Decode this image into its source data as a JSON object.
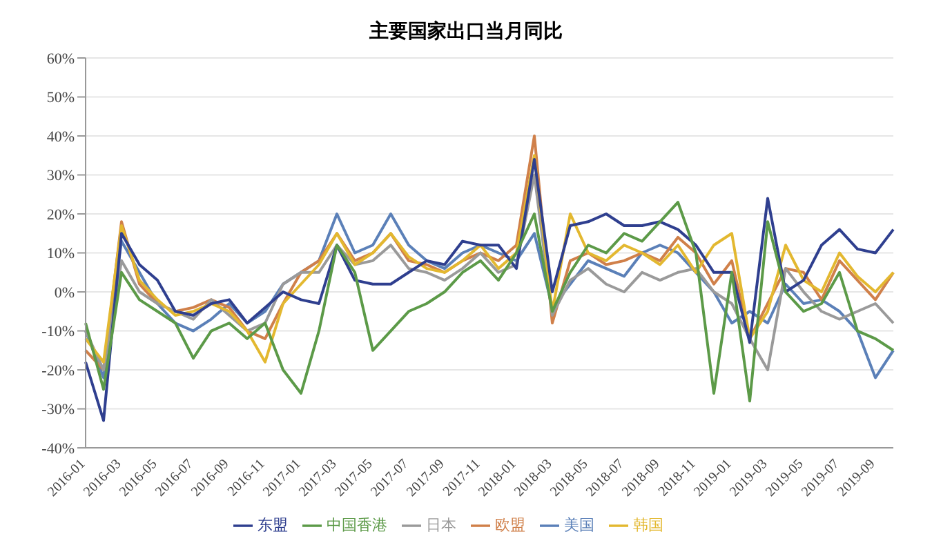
{
  "chart_data": {
    "type": "line",
    "title": "主要国家出口当月同比",
    "categories": [
      "2016-01",
      null,
      "2016-03",
      null,
      "2016-05",
      null,
      "2016-07",
      null,
      "2016-09",
      null,
      "2016-11",
      null,
      "2017-01",
      null,
      "2017-03",
      null,
      "2017-05",
      null,
      "2017-07",
      null,
      "2017-09",
      null,
      "2017-11",
      null,
      "2018-01",
      null,
      "2018-03",
      null,
      "2018-05",
      null,
      "2018-07",
      null,
      "2018-09",
      null,
      "2018-11",
      null,
      "2019-01",
      null,
      "2019-03",
      null,
      "2019-05",
      null,
      "2019-07",
      null,
      "2019-09",
      null
    ],
    "series": [
      {
        "name": "美国",
        "color": "#5b80b8",
        "values": [
          -10,
          -22,
          13,
          5,
          -3,
          -8,
          -10,
          -7,
          -3,
          -8,
          -5,
          2,
          5,
          8,
          20,
          10,
          12,
          20,
          12,
          8,
          6,
          10,
          12,
          10,
          8,
          15,
          -4,
          2,
          8,
          6,
          4,
          10,
          12,
          10,
          5,
          0,
          -8,
          -5,
          -8,
          2,
          -3,
          -2,
          -5,
          -10,
          -22,
          -15
        ]
      },
      {
        "name": "欧盟",
        "color": "#d0804a",
        "values": [
          -15,
          -20,
          18,
          2,
          -3,
          -5,
          -4,
          -2,
          -4,
          -10,
          -12,
          -3,
          5,
          8,
          15,
          8,
          10,
          15,
          8,
          7,
          5,
          8,
          10,
          8,
          12,
          40,
          -8,
          8,
          10,
          7,
          8,
          10,
          8,
          14,
          10,
          2,
          8,
          -12,
          -3,
          6,
          5,
          -2,
          8,
          3,
          -2,
          5
        ]
      },
      {
        "name": "日本",
        "color": "#9a9a9a",
        "values": [
          -10,
          -20,
          8,
          0,
          -3,
          -5,
          -7,
          -2,
          -6,
          -10,
          -8,
          2,
          5,
          5,
          12,
          7,
          8,
          12,
          6,
          5,
          3,
          6,
          10,
          5,
          7,
          30,
          -6,
          3,
          6,
          2,
          0,
          5,
          3,
          5,
          6,
          0,
          -3,
          -12,
          -20,
          6,
          0,
          -5,
          -7,
          -5,
          -3,
          -8
        ]
      },
      {
        "name": "韩国",
        "color": "#e3b830",
        "values": [
          -12,
          -18,
          17,
          3,
          -2,
          -6,
          -5,
          -3,
          -5,
          -10,
          -18,
          -3,
          2,
          7,
          15,
          7,
          10,
          15,
          9,
          6,
          5,
          8,
          12,
          6,
          10,
          35,
          -5,
          20,
          10,
          8,
          12,
          10,
          7,
          12,
          5,
          12,
          15,
          -12,
          -5,
          12,
          3,
          0,
          10,
          4,
          0,
          5
        ]
      },
      {
        "name": "东盟",
        "color": "#2f3f8f",
        "values": [
          -18,
          -33,
          15,
          7,
          3,
          -5,
          -6,
          -3,
          -2,
          -8,
          -4,
          0,
          -2,
          -3,
          12,
          3,
          2,
          2,
          5,
          8,
          7,
          13,
          12,
          12,
          6,
          34,
          0,
          17,
          18,
          20,
          17,
          17,
          18,
          16,
          12,
          5,
          5,
          -13,
          24,
          0,
          3,
          12,
          16,
          11,
          10,
          16
        ]
      },
      {
        "name": "中国香港",
        "color": "#5c9a48",
        "values": [
          -8,
          -25,
          5,
          -2,
          -5,
          -8,
          -17,
          -10,
          -8,
          -12,
          -8,
          -20,
          -26,
          -10,
          12,
          5,
          -15,
          -10,
          -5,
          -3,
          0,
          5,
          8,
          3,
          10,
          20,
          -5,
          5,
          12,
          10,
          15,
          13,
          18,
          23,
          10,
          -26,
          5,
          -28,
          18,
          0,
          -5,
          -3,
          5,
          -10,
          -12,
          -15
        ]
      }
    ],
    "ylim": [
      -40,
      60
    ],
    "yticks": [
      {
        "value": -40,
        "label": "-40%"
      },
      {
        "value": -30,
        "label": "-30%"
      },
      {
        "value": -20,
        "label": "-20%"
      },
      {
        "value": -10,
        "label": "-10%"
      },
      {
        "value": 0,
        "label": "0%"
      },
      {
        "value": 10,
        "label": "10%"
      },
      {
        "value": 20,
        "label": "20%"
      },
      {
        "value": 30,
        "label": "30%"
      },
      {
        "value": 40,
        "label": "40%"
      },
      {
        "value": 50,
        "label": "50%"
      },
      {
        "value": 60,
        "label": "60%"
      }
    ],
    "grid": "y",
    "legend": "bottom",
    "marker": "none",
    "line_style": "solid"
  }
}
